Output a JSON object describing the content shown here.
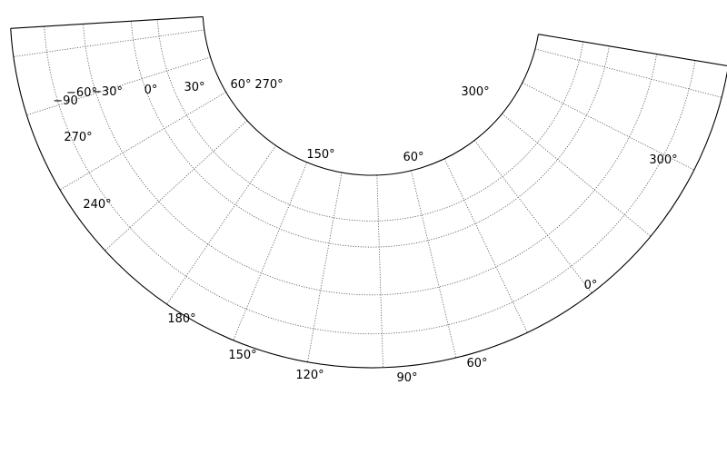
{
  "chart_data": {
    "type": "polar-grid",
    "title": "",
    "series": [],
    "grid": true,
    "outer_edge_labels": [
      "270°",
      "240°",
      "180°",
      "150°",
      "120°",
      "90°",
      "60°",
      "0°",
      "300°"
    ],
    "inner_arc_labels": [
      "150°",
      "60°"
    ],
    "top_left_labels": [
      "−90",
      "−60°",
      "−30°",
      "0°",
      "30°",
      "60°",
      "270°"
    ],
    "top_right_labels": [
      "300°"
    ]
  }
}
